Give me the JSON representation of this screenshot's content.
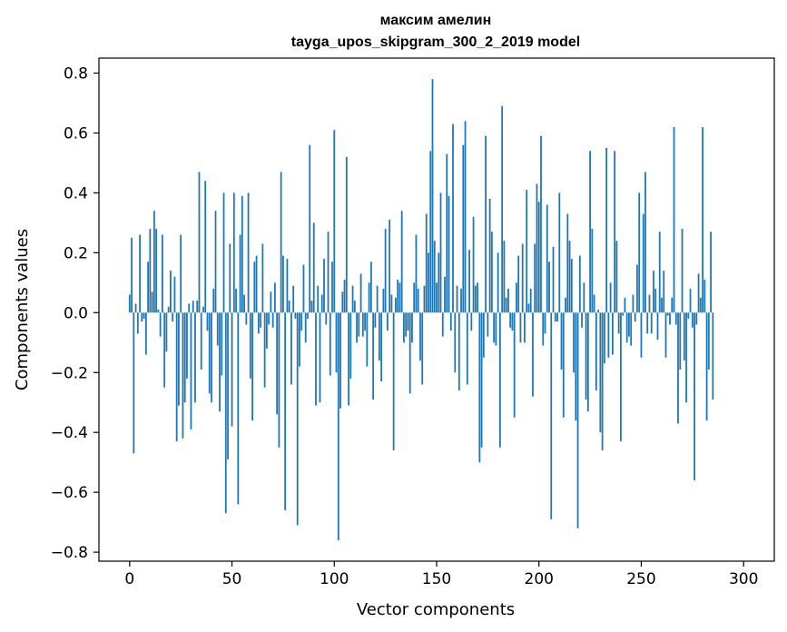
{
  "chart_data": {
    "type": "bar",
    "title": "максим амелин",
    "subtitle": "tayga_upos_skipgram_300_2_2019 model",
    "xlabel": "Vector components",
    "ylabel": "Components values",
    "xlim": [
      -15,
      315
    ],
    "ylim": [
      -0.83,
      0.85
    ],
    "xticks": [
      0,
      50,
      100,
      150,
      200,
      250,
      300
    ],
    "yticks": [
      -0.8,
      -0.6,
      -0.4,
      -0.2,
      0.0,
      0.2,
      0.4,
      0.6,
      0.8
    ],
    "xtick_labels": [
      "0",
      "50",
      "100",
      "150",
      "200",
      "250",
      "300"
    ],
    "ytick_labels": [
      "−0.8",
      "−0.6",
      "−0.4",
      "−0.2",
      "0.0",
      "0.2",
      "0.4",
      "0.6",
      "0.8"
    ],
    "bar_color": "#1f77b4",
    "grid": false,
    "values": [
      0.06,
      0.25,
      -0.47,
      0.03,
      -0.07,
      0.26,
      -0.03,
      -0.02,
      -0.14,
      0.17,
      0.28,
      0.07,
      0.34,
      0.28,
      0.01,
      -0.08,
      0.26,
      -0.25,
      -0.13,
      0.02,
      0.14,
      -0.03,
      0.12,
      -0.43,
      -0.31,
      0.26,
      -0.42,
      -0.3,
      -0.22,
      0.03,
      -0.39,
      0.04,
      -0.3,
      0.04,
      0.47,
      -0.19,
      0.02,
      0.44,
      -0.06,
      -0.27,
      -0.3,
      0.08,
      0.34,
      -0.11,
      -0.33,
      -0.21,
      0.4,
      -0.67,
      -0.49,
      0.23,
      -0.38,
      0.4,
      0.08,
      -0.64,
      0.26,
      0.39,
      0.06,
      -0.04,
      0.4,
      -0.22,
      -0.36,
      0.17,
      0.19,
      -0.07,
      -0.05,
      0.23,
      -0.25,
      -0.12,
      -0.04,
      0.07,
      -0.05,
      0.1,
      -0.34,
      -0.45,
      0.47,
      0.19,
      -0.66,
      0.18,
      0.04,
      -0.24,
      0.09,
      -0.02,
      -0.71,
      -0.18,
      -0.06,
      0.16,
      -0.1,
      -0.02,
      0.56,
      0.04,
      0.3,
      -0.31,
      0.09,
      -0.3,
      0.06,
      0.18,
      -0.04,
      0.27,
      -0.21,
      0.17,
      0.61,
      -0.2,
      -0.76,
      -0.32,
      0.07,
      0.11,
      0.52,
      -0.31,
      -0.22,
      0.09,
      0.04,
      -0.1,
      -0.08,
      0.13,
      -0.08,
      -0.06,
      -0.18,
      0.1,
      0.17,
      -0.29,
      -0.05,
      0.09,
      -0.16,
      -0.23,
      0.08,
      0.28,
      -0.06,
      0.31,
      0.06,
      -0.46,
      0.05,
      0.11,
      0.1,
      0.34,
      -0.1,
      -0.08,
      -0.06,
      -0.27,
      -0.1,
      0.1,
      0.26,
      0.08,
      -0.16,
      -0.24,
      0.09,
      0.33,
      0.2,
      0.54,
      0.78,
      0.24,
      0.1,
      0.2,
      0.4,
      -0.08,
      0.12,
      0.53,
      0.39,
      -0.06,
      0.63,
      -0.2,
      0.09,
      -0.26,
      0.08,
      0.56,
      0.64,
      -0.24,
      0.21,
      -0.06,
      0.32,
      0.09,
      0.1,
      -0.5,
      -0.45,
      -0.15,
      0.59,
      -0.08,
      0.38,
      0.27,
      -0.1,
      -0.11,
      0.2,
      -0.45,
      0.69,
      0.24,
      0.05,
      0.08,
      -0.05,
      -0.06,
      -0.35,
      0.1,
      0.19,
      -0.1,
      0.23,
      -0.1,
      0.41,
      0.03,
      0.08,
      -0.28,
      0.23,
      0.43,
      0.37,
      0.59,
      -0.11,
      -0.07,
      0.36,
      0.17,
      -0.69,
      0.22,
      -0.03,
      -0.03,
      0.4,
      -0.19,
      -0.35,
      0.05,
      0.33,
      0.24,
      0.18,
      -0.2,
      -0.36,
      -0.72,
      0.19,
      -0.05,
      0.1,
      -0.29,
      -0.33,
      0.54,
      0.28,
      0.06,
      -0.26,
      0.01,
      -0.4,
      -0.46,
      -0.17,
      0.55,
      -0.15,
      0.1,
      -0.14,
      0.54,
      0.24,
      -0.07,
      -0.43,
      -0.01,
      0.05,
      -0.1,
      -0.08,
      -0.11,
      0.06,
      -0.03,
      0.16,
      0.4,
      -0.15,
      0.33,
      0.47,
      -0.07,
      0.06,
      -0.07,
      0.14,
      0.08,
      -0.09,
      0.27,
      0.05,
      0.14,
      -0.15,
      -0.01,
      -0.04,
      0.05,
      0.62,
      -0.04,
      -0.37,
      -0.19,
      0.28,
      -0.16,
      -0.3,
      -0.02,
      0.08,
      -0.05,
      -0.56,
      -0.04,
      0.13,
      0.05,
      0.62,
      0.11,
      -0.36,
      -0.19,
      0.27,
      -0.29
    ]
  }
}
